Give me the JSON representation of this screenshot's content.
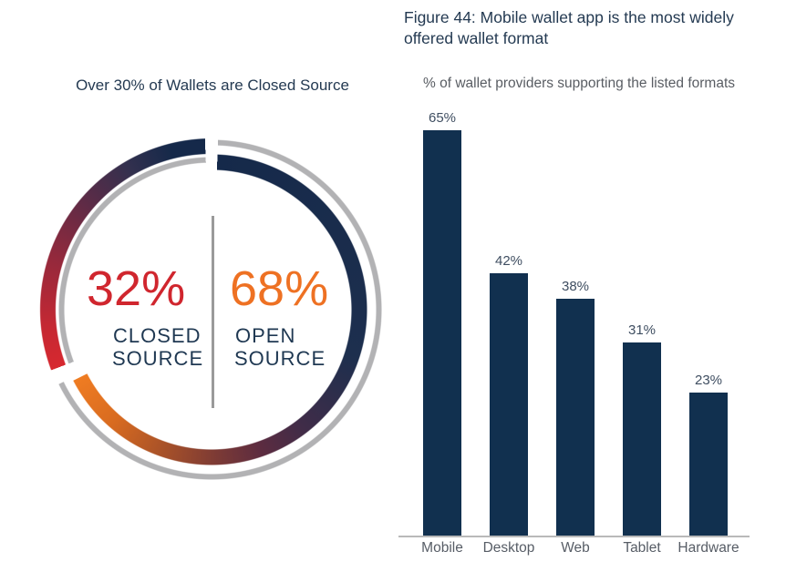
{
  "donut_section": {
    "title": "Over 30% of Wallets are Closed Source",
    "closed_value": "32%",
    "closed_label_line1": "CLOSED",
    "closed_label_line2": "SOURCE",
    "open_value": "68%",
    "open_label_line1": "OPEN",
    "open_label_line2": "SOURCE"
  },
  "bar_section": {
    "title_line1": "Figure 44: Mobile wallet app is the most widely",
    "title_line2": "offered wallet format",
    "subtitle": "% of wallet providers supporting the listed formats"
  },
  "colors": {
    "navy": "#11304f",
    "title_navy": "#243a52",
    "closed_red": "#d0262e",
    "open_orange": "#ee7123",
    "ring_gray": "#b2b2b4",
    "divider_gray": "#9a9a9a",
    "axis_gray": "#b9b9b9",
    "value_label_gray_blue": "#3f4e61",
    "x_label_gray": "#575d66",
    "subtitle_gray": "#595d63",
    "ring_gradient_outer": [
      "#d7282f",
      "#c42833",
      "#93293c",
      "#5e2b46",
      "#33304e",
      "#15294a"
    ],
    "ring_gradient_inner": [
      "#15294a",
      "#1d2f4e",
      "#3f2c48",
      "#5d2c40",
      "#7c3a35",
      "#a95228",
      "#d86b20",
      "#ef7c22"
    ]
  },
  "chart_data": [
    {
      "type": "pie",
      "variant": "offset-double-ring-donut",
      "title": "Over 30% of Wallets are Closed Source",
      "slices": [
        {
          "label": "CLOSED SOURCE",
          "value": 32,
          "color": "#d0262e"
        },
        {
          "label": "OPEN SOURCE",
          "value": 68,
          "color": "#ee7123"
        }
      ],
      "labels_position": "center",
      "legend": false
    },
    {
      "type": "bar",
      "title": "Figure 44: Mobile wallet app is the most widely offered wallet format",
      "subtitle": "% of wallet providers supporting the listed formats",
      "categories": [
        "Mobile",
        "Desktop",
        "Web",
        "Tablet",
        "Hardware"
      ],
      "values": [
        65,
        42,
        38,
        31,
        23
      ],
      "unit": "%",
      "ylim": [
        0,
        70
      ],
      "bar_color": "#11304f",
      "value_labels": true,
      "grid": false,
      "legend": false
    }
  ]
}
